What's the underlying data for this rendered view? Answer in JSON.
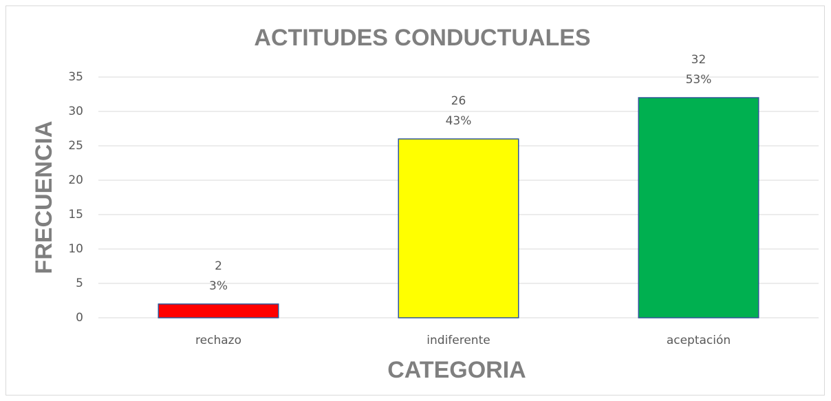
{
  "chart_data": {
    "type": "bar",
    "title": "ACTITUDES CONDUCTUALES",
    "x_label": "CATEGORIA",
    "y_label": "FRECUENCIA",
    "categories": [
      "rechazo",
      "indiferente",
      "aceptación"
    ],
    "values": [
      2,
      26,
      32
    ],
    "share_labels": [
      "3%",
      "43%",
      "53%"
    ],
    "colors": [
      "#ff0000",
      "#ffff00",
      "#00b050"
    ],
    "ylim": [
      0,
      35
    ],
    "yticks": [
      0,
      5,
      10,
      15,
      20,
      25,
      30,
      35
    ],
    "grid": true
  }
}
